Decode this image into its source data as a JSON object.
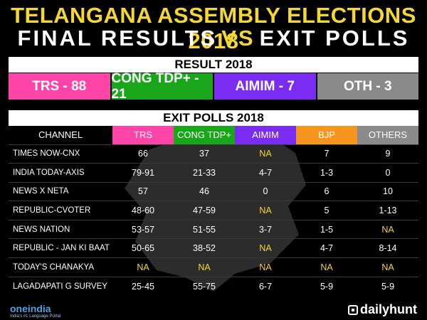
{
  "header": {
    "title_line1": "TELANGANA ASSEMBLY ELECTIONS 2018",
    "title_line2_left": "FINAL RESULTS",
    "title_line2_vs": "VS",
    "title_line2_right": "EXIT POLLS"
  },
  "result": {
    "heading": "RESULT 2018",
    "cells": [
      {
        "label": "TRS - 88",
        "color": "#ff44a8"
      },
      {
        "label": "CONG TDP+ - 21",
        "color": "#1aa61a"
      },
      {
        "label": "AIMIM - 7",
        "color": "#7a2cf2"
      },
      {
        "label": "OTH - 3",
        "color": "#8a8a8a"
      }
    ]
  },
  "exit_polls": {
    "heading": "EXIT POLLS 2018",
    "columns": [
      {
        "label": "CHANNEL",
        "color": "#000000"
      },
      {
        "label": "TRS",
        "color": "#ff44a8"
      },
      {
        "label": "CONG TDP+",
        "color": "#1aa61a"
      },
      {
        "label": "AIMIM",
        "color": "#7a2cf2"
      },
      {
        "label": "BJP",
        "color": "#f7941d"
      },
      {
        "label": "OTHERS",
        "color": "#8a8a8a"
      }
    ],
    "rows": [
      [
        "TIMES NOW-CNX",
        "66",
        "37",
        "NA",
        "7",
        "9"
      ],
      [
        "INDIA TODAY-AXIS",
        "79-91",
        "21-33",
        "4-7",
        "1-3",
        "0"
      ],
      [
        "NEWS X NETA",
        "57",
        "46",
        "0",
        "6",
        "10"
      ],
      [
        "REPUBLIC-CVOTER",
        "48-60",
        "47-59",
        "NA",
        "5",
        "1-13"
      ],
      [
        "NEWS NATION",
        "53-57",
        "51-55",
        "3-7",
        "1-5",
        "NA"
      ],
      [
        "REPUBLIC - JAN KI BAAT",
        "50-65",
        "38-52",
        "NA",
        "4-7",
        "8-14"
      ],
      [
        "TODAY'S CHANAKYA",
        "NA",
        "NA",
        "NA",
        "NA",
        "NA"
      ],
      [
        "LAGADAPATI G SURVEY",
        "25-45",
        "55-75",
        "6-7",
        "5-9",
        "5-9"
      ]
    ]
  },
  "footer": {
    "left_logo": "oneindia",
    "left_tagline": "India's #1 Language Portal",
    "right_logo": "dailyhunt"
  }
}
